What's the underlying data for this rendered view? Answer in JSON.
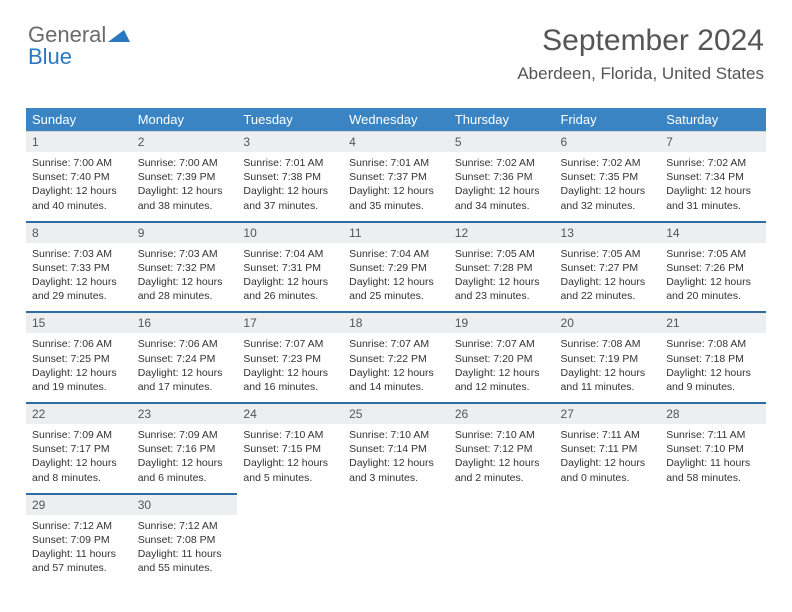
{
  "logo": {
    "text_general": "General",
    "text_blue": "Blue"
  },
  "header": {
    "title": "September 2024",
    "location": "Aberdeen, Florida, United States"
  },
  "colors": {
    "header_bg": "#3a84c4",
    "header_text": "#ffffff",
    "daynum_bg": "#eceeef",
    "week_sep": "#2e6da4",
    "logo_gray": "#6b6b6b",
    "logo_blue": "#2b78c2"
  },
  "weekdays": [
    "Sunday",
    "Monday",
    "Tuesday",
    "Wednesday",
    "Thursday",
    "Friday",
    "Saturday"
  ],
  "days": [
    {
      "n": "1",
      "sr": "Sunrise: 7:00 AM",
      "ss": "Sunset: 7:40 PM",
      "dl1": "Daylight: 12 hours",
      "dl2": "and 40 minutes."
    },
    {
      "n": "2",
      "sr": "Sunrise: 7:00 AM",
      "ss": "Sunset: 7:39 PM",
      "dl1": "Daylight: 12 hours",
      "dl2": "and 38 minutes."
    },
    {
      "n": "3",
      "sr": "Sunrise: 7:01 AM",
      "ss": "Sunset: 7:38 PM",
      "dl1": "Daylight: 12 hours",
      "dl2": "and 37 minutes."
    },
    {
      "n": "4",
      "sr": "Sunrise: 7:01 AM",
      "ss": "Sunset: 7:37 PM",
      "dl1": "Daylight: 12 hours",
      "dl2": "and 35 minutes."
    },
    {
      "n": "5",
      "sr": "Sunrise: 7:02 AM",
      "ss": "Sunset: 7:36 PM",
      "dl1": "Daylight: 12 hours",
      "dl2": "and 34 minutes."
    },
    {
      "n": "6",
      "sr": "Sunrise: 7:02 AM",
      "ss": "Sunset: 7:35 PM",
      "dl1": "Daylight: 12 hours",
      "dl2": "and 32 minutes."
    },
    {
      "n": "7",
      "sr": "Sunrise: 7:02 AM",
      "ss": "Sunset: 7:34 PM",
      "dl1": "Daylight: 12 hours",
      "dl2": "and 31 minutes."
    },
    {
      "n": "8",
      "sr": "Sunrise: 7:03 AM",
      "ss": "Sunset: 7:33 PM",
      "dl1": "Daylight: 12 hours",
      "dl2": "and 29 minutes."
    },
    {
      "n": "9",
      "sr": "Sunrise: 7:03 AM",
      "ss": "Sunset: 7:32 PM",
      "dl1": "Daylight: 12 hours",
      "dl2": "and 28 minutes."
    },
    {
      "n": "10",
      "sr": "Sunrise: 7:04 AM",
      "ss": "Sunset: 7:31 PM",
      "dl1": "Daylight: 12 hours",
      "dl2": "and 26 minutes."
    },
    {
      "n": "11",
      "sr": "Sunrise: 7:04 AM",
      "ss": "Sunset: 7:29 PM",
      "dl1": "Daylight: 12 hours",
      "dl2": "and 25 minutes."
    },
    {
      "n": "12",
      "sr": "Sunrise: 7:05 AM",
      "ss": "Sunset: 7:28 PM",
      "dl1": "Daylight: 12 hours",
      "dl2": "and 23 minutes."
    },
    {
      "n": "13",
      "sr": "Sunrise: 7:05 AM",
      "ss": "Sunset: 7:27 PM",
      "dl1": "Daylight: 12 hours",
      "dl2": "and 22 minutes."
    },
    {
      "n": "14",
      "sr": "Sunrise: 7:05 AM",
      "ss": "Sunset: 7:26 PM",
      "dl1": "Daylight: 12 hours",
      "dl2": "and 20 minutes."
    },
    {
      "n": "15",
      "sr": "Sunrise: 7:06 AM",
      "ss": "Sunset: 7:25 PM",
      "dl1": "Daylight: 12 hours",
      "dl2": "and 19 minutes."
    },
    {
      "n": "16",
      "sr": "Sunrise: 7:06 AM",
      "ss": "Sunset: 7:24 PM",
      "dl1": "Daylight: 12 hours",
      "dl2": "and 17 minutes."
    },
    {
      "n": "17",
      "sr": "Sunrise: 7:07 AM",
      "ss": "Sunset: 7:23 PM",
      "dl1": "Daylight: 12 hours",
      "dl2": "and 16 minutes."
    },
    {
      "n": "18",
      "sr": "Sunrise: 7:07 AM",
      "ss": "Sunset: 7:22 PM",
      "dl1": "Daylight: 12 hours",
      "dl2": "and 14 minutes."
    },
    {
      "n": "19",
      "sr": "Sunrise: 7:07 AM",
      "ss": "Sunset: 7:20 PM",
      "dl1": "Daylight: 12 hours",
      "dl2": "and 12 minutes."
    },
    {
      "n": "20",
      "sr": "Sunrise: 7:08 AM",
      "ss": "Sunset: 7:19 PM",
      "dl1": "Daylight: 12 hours",
      "dl2": "and 11 minutes."
    },
    {
      "n": "21",
      "sr": "Sunrise: 7:08 AM",
      "ss": "Sunset: 7:18 PM",
      "dl1": "Daylight: 12 hours",
      "dl2": "and 9 minutes."
    },
    {
      "n": "22",
      "sr": "Sunrise: 7:09 AM",
      "ss": "Sunset: 7:17 PM",
      "dl1": "Daylight: 12 hours",
      "dl2": "and 8 minutes."
    },
    {
      "n": "23",
      "sr": "Sunrise: 7:09 AM",
      "ss": "Sunset: 7:16 PM",
      "dl1": "Daylight: 12 hours",
      "dl2": "and 6 minutes."
    },
    {
      "n": "24",
      "sr": "Sunrise: 7:10 AM",
      "ss": "Sunset: 7:15 PM",
      "dl1": "Daylight: 12 hours",
      "dl2": "and 5 minutes."
    },
    {
      "n": "25",
      "sr": "Sunrise: 7:10 AM",
      "ss": "Sunset: 7:14 PM",
      "dl1": "Daylight: 12 hours",
      "dl2": "and 3 minutes."
    },
    {
      "n": "26",
      "sr": "Sunrise: 7:10 AM",
      "ss": "Sunset: 7:12 PM",
      "dl1": "Daylight: 12 hours",
      "dl2": "and 2 minutes."
    },
    {
      "n": "27",
      "sr": "Sunrise: 7:11 AM",
      "ss": "Sunset: 7:11 PM",
      "dl1": "Daylight: 12 hours",
      "dl2": "and 0 minutes."
    },
    {
      "n": "28",
      "sr": "Sunrise: 7:11 AM",
      "ss": "Sunset: 7:10 PM",
      "dl1": "Daylight: 11 hours",
      "dl2": "and 58 minutes."
    },
    {
      "n": "29",
      "sr": "Sunrise: 7:12 AM",
      "ss": "Sunset: 7:09 PM",
      "dl1": "Daylight: 11 hours",
      "dl2": "and 57 minutes."
    },
    {
      "n": "30",
      "sr": "Sunrise: 7:12 AM",
      "ss": "Sunset: 7:08 PM",
      "dl1": "Daylight: 11 hours",
      "dl2": "and 55 minutes."
    }
  ]
}
